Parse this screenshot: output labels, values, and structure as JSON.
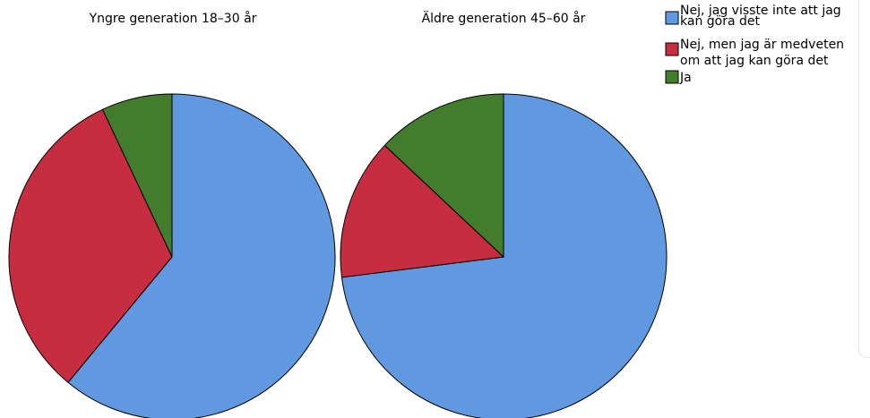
{
  "chart_data": {
    "type": "pie",
    "categories": [
      "Nej, jag visste inte att jag kan göra det",
      "Nej, men jag är medveten om att jag kan göra det",
      "Ja"
    ],
    "legend": {
      "placement": "top-right",
      "entries": [
        {
          "lines": [
            "Nej, jag visste inte att jag",
            "kan göra det"
          ],
          "color": "#6199e0"
        },
        {
          "lines": [
            "Nej, men jag är medveten",
            "om att jag kan göra det"
          ],
          "color": "#c72d40"
        },
        {
          "lines": [
            "Ja"
          ],
          "color": "#437c2c"
        }
      ]
    },
    "pies": [
      {
        "title": "Yngre generation 18–30 år",
        "values": [
          61,
          32,
          7
        ]
      },
      {
        "title": "Äldre generation 45–60 år",
        "values": [
          73,
          14,
          13
        ]
      }
    ]
  }
}
